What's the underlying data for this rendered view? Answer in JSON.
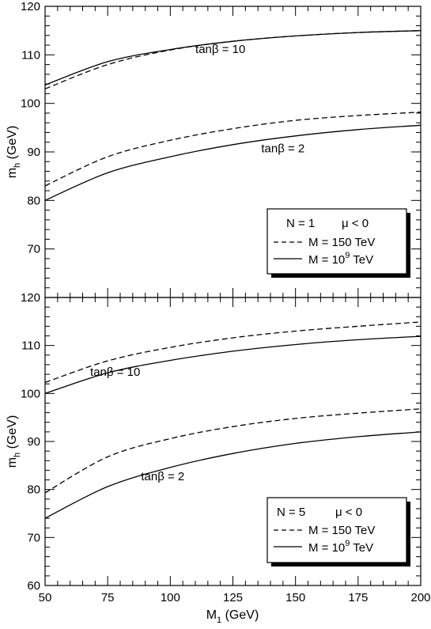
{
  "chart_data": [
    {
      "type": "line",
      "panel": "top",
      "xlabel": "",
      "ylabel_main": "m",
      "ylabel_sub": "h",
      "ylabel_unit": " (GeV)",
      "xlim": [
        50,
        200
      ],
      "ylim": [
        60,
        120
      ],
      "yticks": [
        70,
        80,
        90,
        100,
        110,
        120
      ],
      "legend": {
        "title_left": "N = 1",
        "title_right": "μ < 0",
        "entries": [
          {
            "label_main": "M = 150 TeV",
            "label_sup": "",
            "label_tail": "",
            "style": "dashed"
          },
          {
            "label_main": "M = 10",
            "label_sup": "9",
            "label_tail": " TeV",
            "style": "solid"
          }
        ]
      },
      "annotations": [
        {
          "text": "tanβ = 10",
          "x": 120,
          "y": 110.4
        },
        {
          "text": "tanβ = 2",
          "x": 145,
          "y": 89.9
        }
      ],
      "x": [
        50,
        75,
        100,
        125,
        150,
        175,
        200
      ],
      "series": [
        {
          "name": "M = 150 TeV",
          "group": "tanβ = 10",
          "style": "dashed",
          "values": [
            103.0,
            108.0,
            111.0,
            112.8,
            113.9,
            114.6,
            115.0
          ]
        },
        {
          "name": "M = 10^9 TeV",
          "group": "tanβ = 10",
          "style": "solid",
          "values": [
            103.8,
            108.6,
            111.1,
            112.8,
            113.9,
            114.6,
            115.0
          ]
        },
        {
          "name": "M = 150 TeV",
          "group": "tanβ = 2",
          "style": "dashed",
          "values": [
            83.0,
            89.0,
            92.4,
            94.8,
            96.5,
            97.5,
            98.2
          ]
        },
        {
          "name": "M = 10^9 TeV",
          "group": "tanβ = 2",
          "style": "solid",
          "values": [
            80.0,
            85.7,
            89.0,
            91.5,
            93.3,
            94.6,
            95.5
          ]
        }
      ]
    },
    {
      "type": "line",
      "panel": "bottom",
      "xlabel_main": "M",
      "xlabel_sub": "1",
      "xlabel_unit": "  (GeV)",
      "ylabel_main": "m",
      "ylabel_sub": "h",
      "ylabel_unit": " (GeV)",
      "xlim": [
        50,
        200
      ],
      "ylim": [
        60,
        120
      ],
      "xticks": [
        50,
        75,
        100,
        125,
        150,
        175,
        200
      ],
      "yticks": [
        60,
        70,
        80,
        90,
        100,
        110,
        120
      ],
      "legend": {
        "title_left": "N = 5",
        "title_right": "μ < 0",
        "entries": [
          {
            "label_main": "M = 150 TeV",
            "label_sup": "",
            "label_tail": "",
            "style": "dashed"
          },
          {
            "label_main": "M = 10",
            "label_sup": "9",
            "label_tail": " TeV",
            "style": "solid"
          }
        ]
      },
      "annotations": [
        {
          "text": "tanβ = 10",
          "x": 78,
          "y": 103.7
        },
        {
          "text": "tanβ = 2",
          "x": 97,
          "y": 81.9
        }
      ],
      "x": [
        50,
        75,
        100,
        125,
        150,
        175,
        200
      ],
      "series": [
        {
          "name": "M = 150 TeV",
          "group": "tanβ = 10",
          "style": "dashed",
          "values": [
            102.3,
            106.8,
            109.6,
            111.6,
            113.0,
            114.0,
            114.9
          ]
        },
        {
          "name": "M = 10^9 TeV",
          "group": "tanβ = 10",
          "style": "solid",
          "values": [
            100.0,
            104.3,
            106.9,
            108.8,
            110.2,
            111.2,
            111.9
          ]
        },
        {
          "name": "M = 150 TeV",
          "group": "tanβ = 2",
          "style": "dashed",
          "values": [
            79.3,
            86.8,
            90.6,
            93.1,
            94.8,
            95.9,
            96.8
          ]
        },
        {
          "name": "M = 10^9 TeV",
          "group": "tanβ = 2",
          "style": "solid",
          "values": [
            74.0,
            80.6,
            84.6,
            87.5,
            89.6,
            91.0,
            92.0
          ]
        }
      ]
    }
  ]
}
